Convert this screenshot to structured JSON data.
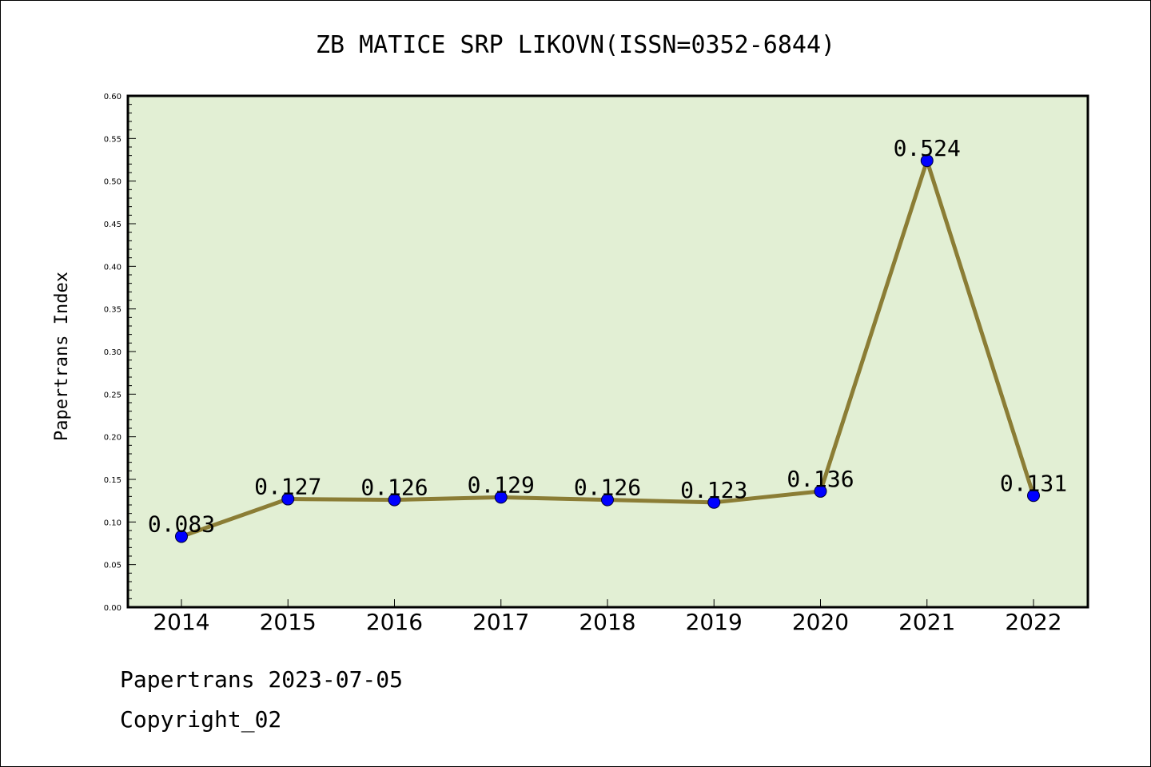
{
  "chart_data": {
    "type": "line",
    "title": "ZB MATICE SRP LIKOVN(ISSN=0352-6844)",
    "xlabel": "",
    "ylabel": "Papertrans Index",
    "categories": [
      "2014",
      "2015",
      "2016",
      "2017",
      "2018",
      "2019",
      "2020",
      "2021",
      "2022"
    ],
    "values": [
      0.083,
      0.127,
      0.126,
      0.129,
      0.126,
      0.123,
      0.136,
      0.524,
      0.131
    ],
    "data_labels": [
      "0.083",
      "0.127",
      "0.126",
      "0.129",
      "0.126",
      "0.123",
      "0.136",
      "0.524",
      "0.131"
    ],
    "ylim": [
      0,
      0.6
    ],
    "yticks": [
      "0.00",
      "0.05",
      "0.10",
      "0.15",
      "0.20",
      "0.25",
      "0.30",
      "0.35",
      "0.40",
      "0.45",
      "0.50",
      "0.55",
      "0.60"
    ],
    "grid": false,
    "colors": {
      "plot_background": "#e2efd4",
      "line": "#8b7d35",
      "marker": "#0000ff"
    }
  },
  "footer": {
    "line1": "Papertrans 2023-07-05",
    "line2": "Copyright_02"
  }
}
